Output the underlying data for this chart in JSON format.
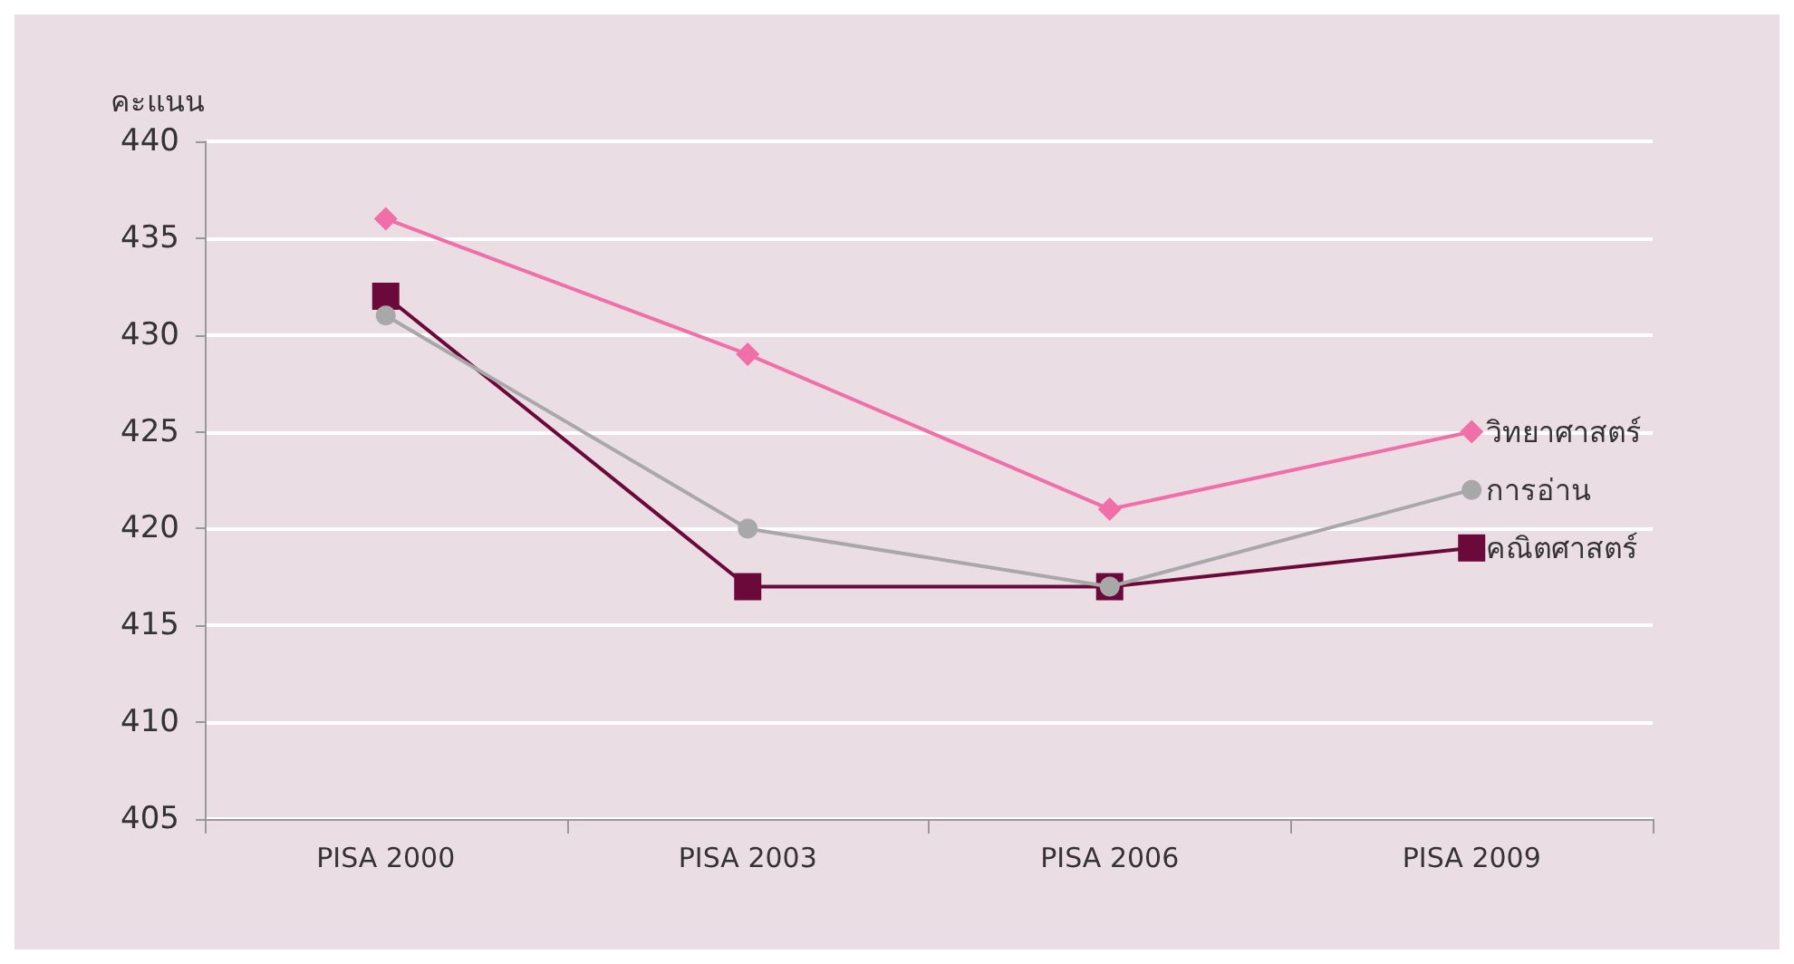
{
  "chart_data": {
    "type": "line",
    "ylabel": "คะแนน",
    "categories": [
      "PISA 2000",
      "PISA 2003",
      "PISA 2006",
      "PISA 2009"
    ],
    "ylim": [
      405,
      440
    ],
    "yticks": [
      405,
      410,
      415,
      420,
      425,
      430,
      435,
      440
    ],
    "grid": "y",
    "legend": false,
    "series": [
      {
        "name": "วิทยาศาสตร์",
        "color": "#f06fa8",
        "marker": "diamond",
        "values": [
          436,
          429,
          421,
          425
        ]
      },
      {
        "name": "การอ่าน",
        "color": "#a8a8a8",
        "marker": "circle",
        "values": [
          431,
          420,
          417,
          422
        ]
      },
      {
        "name": "คณิตศาสตร์",
        "color": "#6b0a3a",
        "marker": "square",
        "values": [
          432,
          417,
          417,
          419
        ]
      }
    ]
  }
}
